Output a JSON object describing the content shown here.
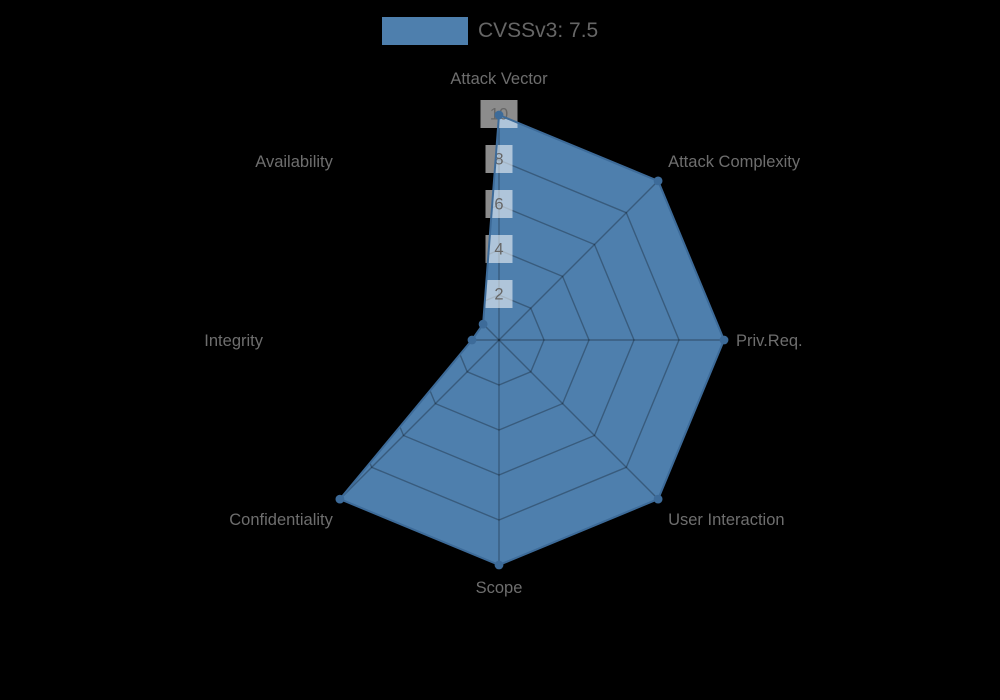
{
  "background_color": "#000000",
  "legend": {
    "label": "CVSSv3: 7.5",
    "swatch_color": "#4e7fad"
  },
  "chart_data": {
    "type": "radar",
    "categories": [
      "Attack Vector",
      "Attack Complexity",
      "Priv.Req.",
      "User Interaction",
      "Scope",
      "Confidentiality",
      "Integrity",
      "Availability"
    ],
    "series": [
      {
        "name": "CVSSv3: 7.5",
        "values": [
          10,
          10,
          10,
          10,
          10,
          10,
          1.2,
          1.0
        ]
      }
    ],
    "rmin": 0,
    "rmax": 10,
    "ticks": [
      2,
      4,
      6,
      8,
      10
    ],
    "start_axis": "top",
    "direction": "clockwise",
    "grid": "on",
    "legend_position": "top-center",
    "colors": {
      "fill": "#4e7fad",
      "line": "#3d6b99",
      "grid": "rgba(0,0,0,0.28)",
      "tick_label_bg": "rgba(255,255,255,0.55)",
      "tick_label_text": "#666666",
      "axis_label_text": "#6e6e6e"
    }
  }
}
